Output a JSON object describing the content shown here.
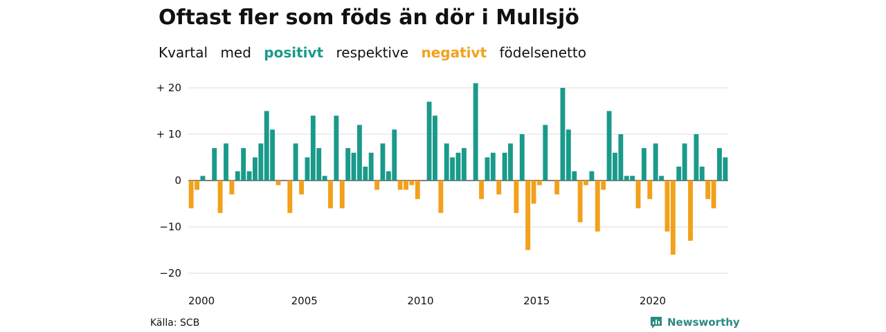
{
  "title": "Oftast fler som föds än dör i Mullsjö",
  "subtitle": {
    "w1": "Kvartal",
    "w2": "med",
    "positive": "positivt",
    "w3": "respektive",
    "negative": "negativt",
    "w4": "födelsenetto"
  },
  "colors": {
    "positive": "#1a9a8a",
    "negative": "#f2a11b",
    "brand": "#2a8a80"
  },
  "source": "Källa: SCB",
  "brand": {
    "name": "Newsworthy",
    "icon": "newsworthy-logo-icon"
  },
  "chart_data": {
    "type": "bar",
    "title": "Oftast fler som föds än dör i Mullsjö",
    "xlabel": "",
    "ylabel": "",
    "ylim": [
      -21,
      21
    ],
    "yticks": [
      20,
      10,
      0,
      -10,
      -20
    ],
    "ytick_labels": [
      "+ 20",
      "+ 10",
      "0",
      "−10",
      "−20"
    ],
    "xticks": [
      2000,
      2005,
      2010,
      2015,
      2020
    ],
    "xtick_labels": [
      "2000",
      "2005",
      "2010",
      "2015",
      "2020"
    ],
    "grid": true,
    "start_year": 2000,
    "values": [
      -6,
      -2,
      1,
      0,
      7,
      -7,
      8,
      -3,
      2,
      7,
      2,
      5,
      8,
      15,
      11,
      -1,
      0,
      -7,
      8,
      -3,
      5,
      14,
      7,
      1,
      -6,
      14,
      -6,
      7,
      6,
      12,
      3,
      6,
      -2,
      8,
      2,
      11,
      -2,
      -2,
      -1,
      -4,
      0,
      17,
      14,
      -7,
      8,
      5,
      6,
      7,
      0,
      21,
      -4,
      5,
      6,
      -3,
      6,
      8,
      -7,
      10,
      -15,
      -5,
      -1,
      12,
      0,
      -3,
      20,
      11,
      2,
      -9,
      -1,
      2,
      -11,
      -2,
      15,
      6,
      10,
      1,
      1,
      -6,
      7,
      -4,
      8,
      1,
      -11,
      -16,
      3,
      8,
      -13,
      10,
      3,
      -4,
      -6,
      7,
      5
    ]
  }
}
